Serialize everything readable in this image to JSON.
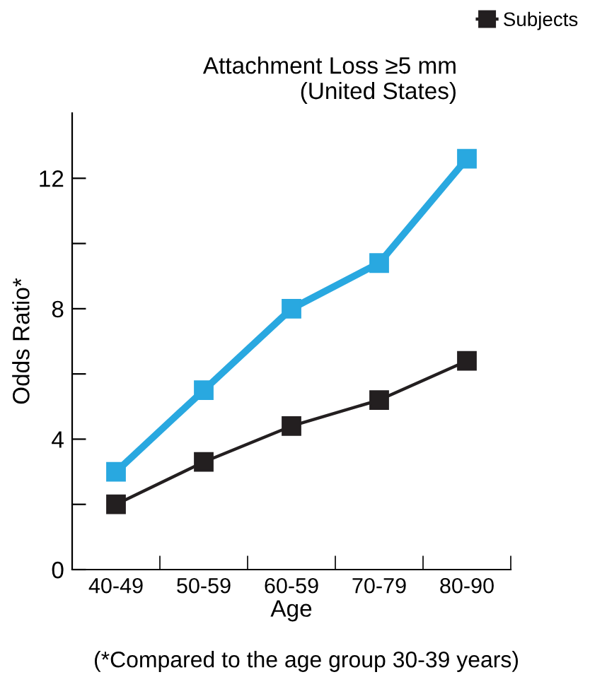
{
  "chart_data": {
    "type": "line",
    "title": "Attachment Loss ≥5 mm\n(United States)",
    "xlabel": "Age",
    "ylabel": "Odds Ratio*",
    "categories": [
      "40-49",
      "50-59",
      "60-59",
      "70-79",
      "80-90"
    ],
    "series": [
      {
        "color": "#29a8e0",
        "values": [
          3.0,
          5.5,
          8.0,
          9.4,
          12.6
        ]
      },
      {
        "name": "Subjects",
        "color": "#231f20",
        "values": [
          2.0,
          3.3,
          4.4,
          5.2,
          6.4
        ]
      }
    ],
    "ylim": [
      0,
      14
    ],
    "yticks": [
      0,
      {
        "value": 2,
        "label": null
      },
      4,
      {
        "value": 6,
        "label": null
      },
      8,
      {
        "value": 10,
        "label": null
      },
      12
    ],
    "marker": "square",
    "line_style": "solid",
    "grid": false,
    "legend": "top right",
    "annotations": [
      "(*Compared to the age group 30-39 years)"
    ]
  }
}
